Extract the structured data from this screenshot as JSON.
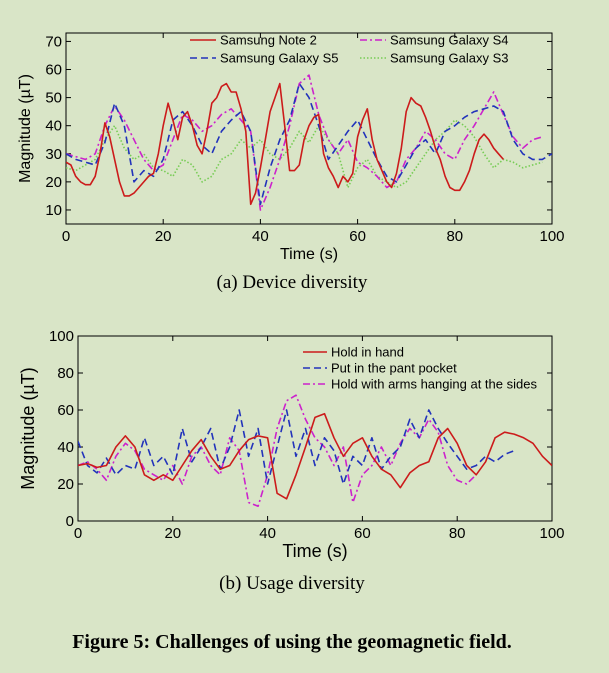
{
  "chart_data": [
    {
      "type": "line",
      "title": "",
      "caption": "(a) Device diversity",
      "xlabel": "Time (s)",
      "ylabel": "Magnitude (µT)",
      "xlim": [
        0,
        100
      ],
      "ylim": [
        5,
        73
      ],
      "xticks": [
        0,
        20,
        40,
        60,
        80,
        100
      ],
      "yticks": [
        10,
        20,
        30,
        40,
        50,
        60,
        70
      ],
      "grid": false,
      "legend_position": "top",
      "series": [
        {
          "name": "Samsung Note 2",
          "color": "#cc1b1b",
          "dash": "solid",
          "x": [
            0,
            1,
            2,
            3,
            4,
            5,
            6,
            7,
            8,
            9,
            10,
            11,
            12,
            13,
            14,
            15,
            16,
            17,
            18,
            19,
            20,
            21,
            22,
            23,
            24,
            25,
            26,
            27,
            28,
            29,
            30,
            31,
            32,
            33,
            34,
            35,
            36,
            37,
            38,
            39,
            40,
            41,
            42,
            43,
            44,
            45,
            46,
            47,
            48,
            49,
            50,
            51,
            52,
            53,
            54,
            55,
            56,
            57,
            58,
            59,
            60,
            61,
            62,
            63,
            64,
            65,
            66,
            67,
            68,
            69,
            70,
            71,
            72,
            73,
            74,
            75,
            76,
            77,
            78,
            79,
            80,
            81,
            82,
            83,
            84,
            85,
            86,
            87,
            88,
            89,
            90
          ],
          "y": [
            27,
            26,
            22,
            20,
            19,
            19,
            22,
            30,
            41,
            36,
            28,
            20,
            15,
            15,
            16,
            18,
            20,
            22,
            23,
            30,
            40,
            48,
            42,
            35,
            43,
            45,
            40,
            33,
            30,
            38,
            48,
            50,
            54,
            55,
            52,
            52,
            46,
            38,
            12,
            16,
            25,
            35,
            45,
            50,
            55,
            40,
            24,
            24,
            26,
            35,
            40,
            43,
            44,
            30,
            25,
            22,
            18,
            22,
            20,
            23,
            36,
            42,
            46,
            35,
            28,
            24,
            20,
            18,
            23,
            32,
            45,
            50,
            48,
            47,
            43,
            38,
            32,
            28,
            22,
            18,
            17,
            17,
            20,
            24,
            30,
            35,
            37,
            35,
            32,
            30,
            28
          ]
        },
        {
          "name": "Samsung Galaxy S5",
          "color": "#2233bb",
          "dash": "7,4",
          "x": [
            0,
            2,
            4,
            6,
            8,
            10,
            12,
            14,
            16,
            18,
            20,
            22,
            24,
            26,
            28,
            30,
            32,
            34,
            36,
            38,
            40,
            42,
            44,
            46,
            48,
            50,
            52,
            54,
            56,
            58,
            60,
            62,
            64,
            66,
            68,
            70,
            72,
            74,
            76,
            78,
            80,
            82,
            84,
            86,
            88,
            90,
            92,
            94,
            96,
            98,
            100
          ],
          "y": [
            30,
            28,
            27,
            26,
            34,
            48,
            40,
            20,
            24,
            22,
            28,
            42,
            45,
            40,
            33,
            30,
            38,
            42,
            45,
            38,
            12,
            25,
            35,
            42,
            55,
            50,
            40,
            28,
            33,
            38,
            42,
            35,
            28,
            22,
            20,
            26,
            32,
            35,
            30,
            38,
            40,
            43,
            45,
            46,
            47,
            45,
            35,
            30,
            28,
            28,
            30
          ]
        },
        {
          "name": "Samsung Galaxy S4",
          "color": "#cc22cc",
          "dash": "7,3,2,3",
          "x": [
            0,
            2,
            4,
            6,
            8,
            10,
            12,
            14,
            16,
            18,
            20,
            22,
            24,
            26,
            28,
            30,
            32,
            34,
            36,
            38,
            40,
            42,
            44,
            46,
            48,
            50,
            52,
            54,
            56,
            58,
            60,
            62,
            64,
            66,
            68,
            70,
            72,
            74,
            76,
            78,
            80,
            82,
            84,
            86,
            88,
            90,
            92,
            94,
            96,
            98
          ],
          "y": [
            30,
            29,
            28,
            30,
            40,
            47,
            42,
            35,
            28,
            24,
            26,
            35,
            44,
            42,
            38,
            40,
            44,
            46,
            42,
            38,
            10,
            18,
            28,
            40,
            55,
            58,
            44,
            35,
            30,
            35,
            27,
            25,
            22,
            18,
            20,
            28,
            32,
            38,
            35,
            30,
            28,
            35,
            40,
            46,
            52,
            44,
            36,
            32,
            35,
            36
          ]
        },
        {
          "name": "Samsung Galaxy S3",
          "color": "#77cc55",
          "dash": "1.5,2",
          "x": [
            0,
            2,
            4,
            6,
            8,
            10,
            12,
            14,
            16,
            18,
            20,
            22,
            24,
            26,
            28,
            30,
            32,
            34,
            36,
            38,
            40,
            42,
            44,
            46,
            48,
            50,
            52,
            54,
            56,
            58,
            60,
            62,
            64,
            66,
            68,
            70,
            72,
            74,
            76,
            78,
            80,
            82,
            84,
            86,
            88,
            90,
            92,
            94,
            96,
            98
          ],
          "y": [
            25,
            24,
            26,
            28,
            35,
            40,
            32,
            28,
            30,
            25,
            24,
            22,
            28,
            26,
            20,
            22,
            28,
            30,
            35,
            32,
            35,
            30,
            28,
            32,
            38,
            34,
            40,
            35,
            30,
            18,
            25,
            28,
            22,
            20,
            18,
            20,
            25,
            30,
            35,
            38,
            42,
            40,
            36,
            30,
            25,
            28,
            27,
            25,
            26,
            27
          ]
        }
      ]
    },
    {
      "type": "line",
      "title": "",
      "caption": "(b) Usage diversity",
      "xlabel": "Time (s)",
      "ylabel": "Magnitude (µT)",
      "xlim": [
        0,
        100
      ],
      "ylim": [
        0,
        100
      ],
      "xticks": [
        0,
        20,
        40,
        60,
        80,
        100
      ],
      "yticks": [
        0,
        20,
        40,
        60,
        80,
        100
      ],
      "grid": false,
      "legend_position": "top-right",
      "series": [
        {
          "name": "Hold in hand",
          "color": "#cc1b1b",
          "dash": "solid",
          "x": [
            0,
            2,
            4,
            6,
            8,
            10,
            12,
            14,
            16,
            18,
            20,
            22,
            24,
            26,
            28,
            30,
            32,
            34,
            36,
            38,
            40,
            42,
            44,
            46,
            48,
            50,
            52,
            54,
            56,
            58,
            60,
            62,
            64,
            66,
            68,
            70,
            72,
            74,
            76,
            78,
            80,
            82,
            84,
            86,
            88,
            90,
            92,
            94,
            96,
            98,
            100
          ],
          "y": [
            30,
            31,
            29,
            30,
            40,
            46,
            40,
            25,
            22,
            25,
            22,
            30,
            38,
            44,
            35,
            28,
            30,
            38,
            44,
            46,
            45,
            15,
            12,
            25,
            40,
            56,
            58,
            45,
            35,
            42,
            45,
            35,
            28,
            25,
            18,
            26,
            30,
            32,
            45,
            50,
            42,
            30,
            25,
            32,
            45,
            48,
            47,
            45,
            42,
            35,
            30
          ]
        },
        {
          "name": "Put in the pant pocket",
          "color": "#2233bb",
          "dash": "7,4",
          "x": [
            0,
            2,
            4,
            6,
            8,
            10,
            12,
            14,
            16,
            18,
            20,
            22,
            24,
            26,
            28,
            30,
            32,
            34,
            36,
            38,
            40,
            42,
            44,
            46,
            48,
            50,
            52,
            54,
            56,
            58,
            60,
            62,
            64,
            66,
            68,
            70,
            72,
            74,
            76,
            78,
            80,
            82,
            84,
            86,
            88,
            90,
            92
          ],
          "y": [
            43,
            30,
            26,
            34,
            25,
            30,
            28,
            45,
            30,
            35,
            25,
            50,
            32,
            40,
            50,
            28,
            40,
            60,
            35,
            50,
            20,
            40,
            60,
            35,
            50,
            30,
            45,
            38,
            20,
            35,
            30,
            45,
            28,
            35,
            40,
            55,
            45,
            60,
            50,
            42,
            35,
            28,
            30,
            35,
            32,
            36,
            38
          ]
        },
        {
          "name": "Hold with arms hanging at the sides",
          "color": "#cc22cc",
          "dash": "7,3,2,3",
          "x": [
            0,
            2,
            4,
            6,
            8,
            10,
            12,
            14,
            16,
            18,
            20,
            22,
            24,
            26,
            28,
            30,
            32,
            34,
            36,
            38,
            40,
            42,
            44,
            46,
            48,
            50,
            52,
            54,
            56,
            58,
            60,
            62,
            64,
            66,
            68,
            70,
            72,
            74,
            76,
            78,
            80,
            82,
            84
          ],
          "y": [
            30,
            32,
            28,
            22,
            35,
            42,
            38,
            28,
            25,
            22,
            30,
            20,
            35,
            40,
            30,
            25,
            45,
            38,
            10,
            8,
            25,
            50,
            65,
            68,
            55,
            45,
            40,
            30,
            40,
            10,
            25,
            30,
            40,
            30,
            42,
            50,
            45,
            55,
            48,
            30,
            22,
            20,
            25
          ]
        }
      ]
    }
  ],
  "figure_caption": "Figure 5: Challenges of using the geomagnetic field."
}
